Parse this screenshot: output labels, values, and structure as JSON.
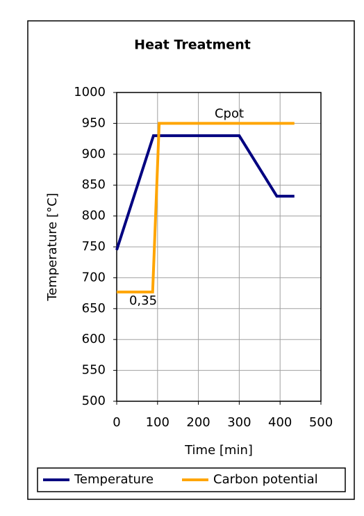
{
  "chart_data": {
    "type": "line",
    "title": "Heat Treatment",
    "x_label": "Time [min]",
    "y_label": "Temperature [°C]",
    "xlim": [
      0,
      500
    ],
    "xticks": [
      0,
      100,
      200,
      300,
      400,
      500
    ],
    "ylim": [
      500,
      1000
    ],
    "yticks": [
      500,
      550,
      600,
      650,
      700,
      750,
      800,
      850,
      900,
      950,
      1000
    ],
    "grid": true,
    "legend": "bottom",
    "annotations": [
      "Cpot",
      "0,35"
    ],
    "series": [
      {
        "name": "Temperature",
        "color": "#000080",
        "x": [
          0,
          90,
          300,
          392,
          435
        ],
        "values": [
          745,
          930,
          930,
          832,
          832
        ]
      },
      {
        "name": "Carbon potential",
        "color": "#ffa500",
        "x": [
          0,
          88,
          104,
          435
        ],
        "values": [
          677,
          677,
          950,
          950
        ]
      }
    ]
  }
}
